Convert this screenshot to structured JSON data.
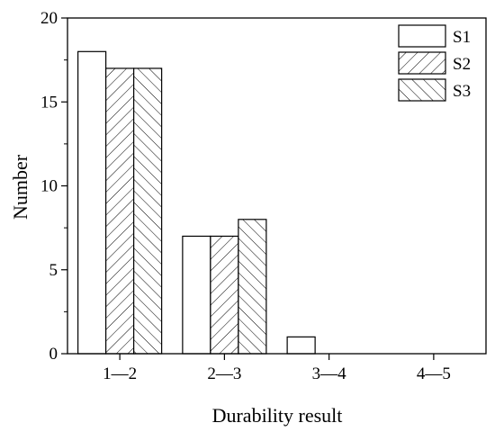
{
  "chart_data": {
    "type": "bar",
    "title": "",
    "xlabel": "Durability result",
    "ylabel": "Number",
    "categories": [
      "1—2",
      "2—3",
      "3—4",
      "4—5"
    ],
    "series": [
      {
        "name": "S1",
        "values": [
          18,
          7,
          1,
          0
        ],
        "pattern": "none"
      },
      {
        "name": "S2",
        "values": [
          17,
          7,
          0,
          0
        ],
        "pattern": "hatch-forward"
      },
      {
        "name": "S3",
        "values": [
          17,
          8,
          0,
          0
        ],
        "pattern": "hatch-backward"
      }
    ],
    "ylim": [
      0,
      20
    ],
    "yticks": [
      "0",
      "5",
      "10",
      "15",
      "20"
    ],
    "legend_position": "top-right",
    "grid": false,
    "colors": {
      "bar_fill": "#ffffff",
      "stroke": "#000000"
    }
  }
}
